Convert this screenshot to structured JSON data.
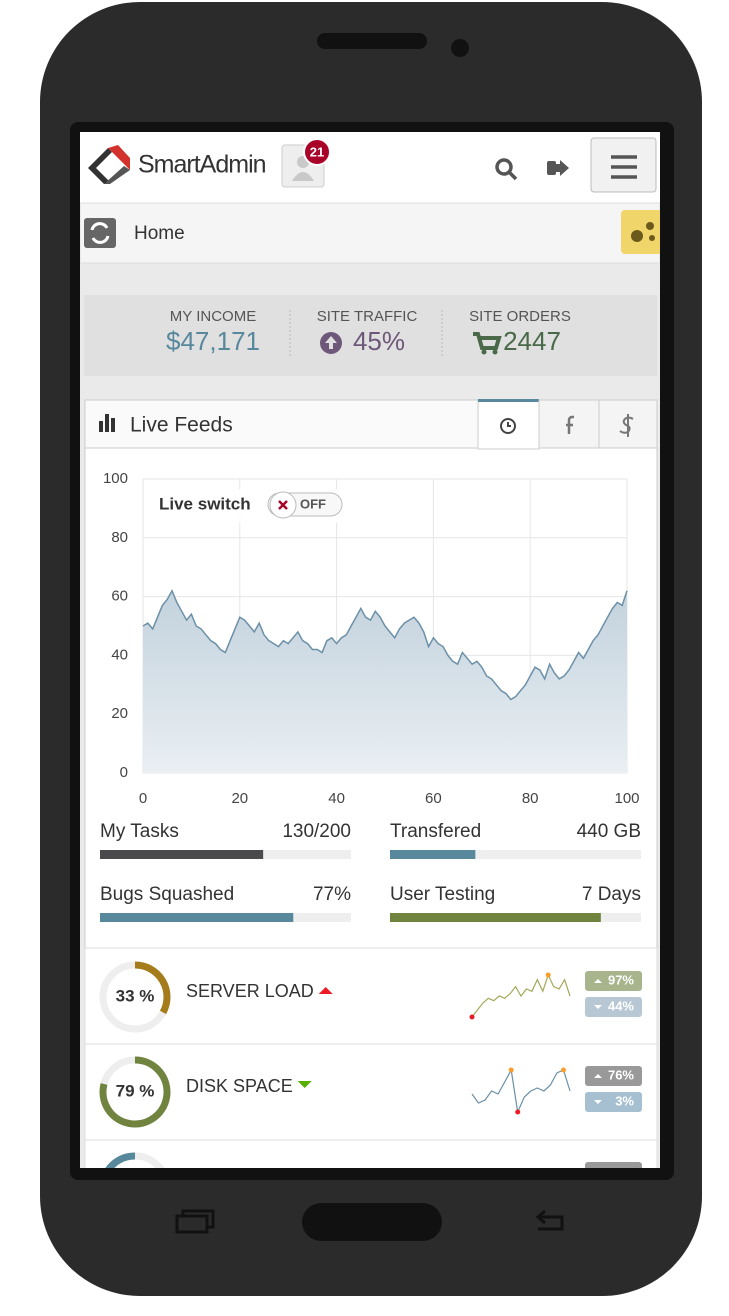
{
  "header": {
    "brand": "SmartAdmin",
    "notification_count": "21"
  },
  "breadcrumb": "Home",
  "stats": [
    {
      "label": "MY INCOME",
      "value": "$47,171",
      "color": "#57889c"
    },
    {
      "label": "SITE TRAFFIC",
      "value": "45%",
      "color": "#6e587a"
    },
    {
      "label": "SITE ORDERS",
      "value": "2447",
      "color": "#496949"
    }
  ],
  "widget": {
    "title": "Live Feeds",
    "toggle": {
      "label": "Live switch",
      "state": "OFF"
    }
  },
  "chart_data": {
    "type": "area",
    "x": [
      0,
      1,
      2,
      3,
      4,
      5,
      6,
      7,
      8,
      9,
      10,
      11,
      12,
      13,
      14,
      15,
      16,
      17,
      18,
      19,
      20,
      21,
      22,
      23,
      24,
      25,
      26,
      27,
      28,
      29,
      30,
      31,
      32,
      33,
      34,
      35,
      36,
      37,
      38,
      39,
      40,
      41,
      42,
      43,
      44,
      45,
      46,
      47,
      48,
      49,
      50,
      51,
      52,
      53,
      54,
      55,
      56,
      57,
      58,
      59,
      60,
      61,
      62,
      63,
      64,
      65,
      66,
      67,
      68,
      69,
      70,
      71,
      72,
      73,
      74,
      75,
      76,
      77,
      78,
      79,
      80,
      81,
      82,
      83,
      84,
      85,
      86,
      87,
      88,
      89,
      90,
      91,
      92,
      93,
      94,
      95,
      96,
      97,
      98,
      99,
      100
    ],
    "values": [
      50,
      51,
      49,
      53,
      57,
      59,
      62,
      58,
      55,
      52,
      54,
      50,
      49,
      47,
      45,
      44,
      42,
      41,
      45,
      49,
      53,
      52,
      50,
      48,
      51,
      47,
      45,
      44,
      43,
      45,
      44,
      46,
      48,
      45,
      44,
      42,
      42,
      41,
      45,
      46,
      44,
      46,
      47,
      50,
      53,
      56,
      53,
      52,
      55,
      53,
      50,
      48,
      46,
      49,
      51,
      52,
      53,
      51,
      48,
      43,
      46,
      44,
      43,
      40,
      38,
      37,
      41,
      39,
      37,
      38,
      36,
      33,
      32,
      30,
      28,
      27,
      25,
      26,
      28,
      30,
      33,
      36,
      35,
      32,
      37,
      34,
      32,
      33,
      35,
      38,
      41,
      39,
      42,
      45,
      47,
      50,
      53,
      56,
      58,
      57,
      62
    ],
    "xlim": [
      0,
      100
    ],
    "xticks": [
      0,
      20,
      40,
      60,
      80,
      100
    ],
    "ylim": [
      0,
      100
    ],
    "yticks": [
      0,
      20,
      40,
      60,
      80,
      100
    ],
    "color": "#6b90a8",
    "grid": true
  },
  "progress": [
    {
      "label": "My Tasks",
      "value_text": "130/200",
      "percent": 65,
      "color": "#4a4a4d"
    },
    {
      "label": "Transfered",
      "value_text": "440 GB",
      "percent": 34,
      "color": "#57889c"
    },
    {
      "label": "Bugs Squashed",
      "value_text": "77%",
      "percent": 77,
      "color": "#57889c"
    },
    {
      "label": "User Testing",
      "value_text": "7 Days",
      "percent": 84,
      "color": "#71843f"
    }
  ],
  "stat_rows": [
    {
      "percent": 33,
      "percent_label": "33 %",
      "color": "#a57c1b",
      "label": "SERVER LOAD",
      "trend": "up",
      "sparkline": [
        0,
        3,
        6,
        8,
        7,
        9,
        8,
        10,
        13,
        9,
        12,
        11,
        16,
        11,
        18,
        13,
        12,
        16,
        9
      ],
      "badges": [
        {
          "text": "97%",
          "color": "#a8b58c"
        },
        {
          "text": "44%",
          "color": "#b7c8d4"
        }
      ]
    },
    {
      "percent": 79,
      "percent_label": "79 %",
      "color": "#71843f",
      "label": "DISK SPACE",
      "trend": "down",
      "sparkline": [
        8,
        5,
        6,
        9,
        8,
        12,
        16,
        2,
        7,
        9,
        10,
        9,
        11,
        15,
        16,
        9
      ],
      "badges": [
        {
          "text": "76%",
          "color": "#999999"
        },
        {
          "text": "3%",
          "color": "#a6bfd1"
        }
      ]
    }
  ]
}
